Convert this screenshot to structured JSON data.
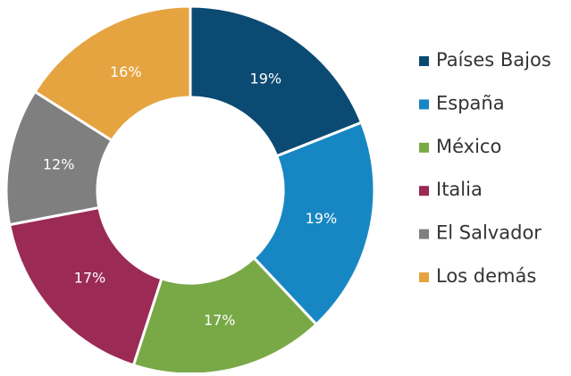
{
  "chart_data": {
    "type": "donut",
    "categories": [
      "Países Bajos",
      "España",
      "México",
      "Italia",
      "El Salvador",
      "Los demás"
    ],
    "values": [
      19,
      19,
      17,
      17,
      12,
      16
    ],
    "value_labels": [
      "19%",
      "19%",
      "17%",
      "17%",
      "12%",
      "16%"
    ],
    "colors": [
      "#0b4a72",
      "#1787c3",
      "#79a947",
      "#9b2a54",
      "#7f7f7f",
      "#e5a43f"
    ],
    "legend": "right"
  }
}
